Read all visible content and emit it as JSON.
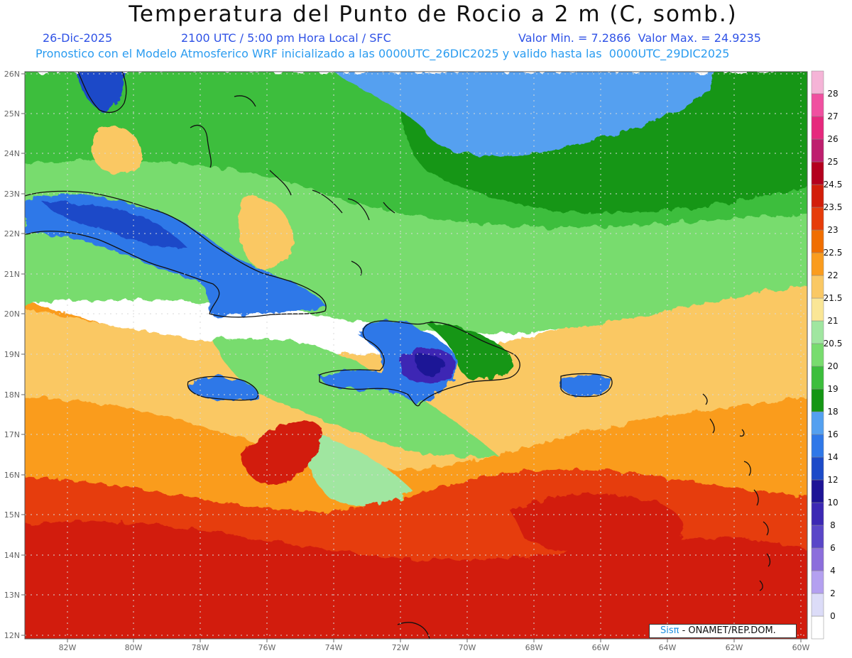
{
  "title": "Temperatura del Punto de Rocio a 2 m (C, somb.)",
  "date": "26-Dic-2025",
  "time": "2100 UTC / 5:00 pm Hora Local / SFC",
  "stats": "Valor Min. = 7.2866  Valor Max. = 24.9235",
  "model_info": "Pronostico con el Modelo Atmosferico WRF inicializado a las 0000UTC_26DIC2025 y valido hasta las  0000UTC_29DIC2025",
  "credit_logo": "Sisπ",
  "credit_text": " - ONAMET/REP.DOM.",
  "lat_labels": [
    "26N",
    "25N",
    "24N",
    "23N",
    "22N",
    "21N",
    "20N",
    "19N",
    "18N",
    "17N",
    "16N",
    "15N",
    "14N",
    "13N",
    "12N"
  ],
  "lon_labels": [
    "82W",
    "80W",
    "78W",
    "76W",
    "74W",
    "72W",
    "70W",
    "68W",
    "66W",
    "64W",
    "62W",
    "60W"
  ],
  "colorbar": {
    "levels": [
      "0",
      "2",
      "4",
      "6",
      "8",
      "10",
      "12",
      "14",
      "16",
      "18",
      "19",
      "20",
      "20.5",
      "21",
      "21.5",
      "22",
      "22.5",
      "23",
      "23.5",
      "24.5",
      "25",
      "26",
      "27",
      "28"
    ],
    "colors": [
      "#ffffff",
      "#dcdcf8",
      "#b4a0f0",
      "#8c6edc",
      "#5a46c8",
      "#3c28b4",
      "#1e1496",
      "#1c4ac8",
      "#2f78e8",
      "#54a0f0",
      "#149614",
      "#3cbe3c",
      "#78dc6e",
      "#a0e6a0",
      "#fae696",
      "#fac864",
      "#fa9c1e",
      "#f06e00",
      "#e63c0a",
      "#d21e0a",
      "#b4001e",
      "#be1e6e",
      "#e6287d",
      "#f050a0",
      "#f5b4d7"
    ]
  },
  "legend": {
    "dewpoint_colors": {
      "c10": "#1e1496",
      "c12": "#3c28b4",
      "c14": "#1c4ac8",
      "c16": "#2f78e8",
      "c17": "#54a0f0",
      "c18": "#149614",
      "c19": "#3cbe3c",
      "c20": "#78dc6e",
      "c205": "#a0e6a0",
      "c21": "#fae696",
      "c215": "#fac864",
      "c22": "#fa9c1e",
      "c225": "#f06e00",
      "c23": "#e63c0a",
      "c235": "#d21e0a"
    }
  }
}
